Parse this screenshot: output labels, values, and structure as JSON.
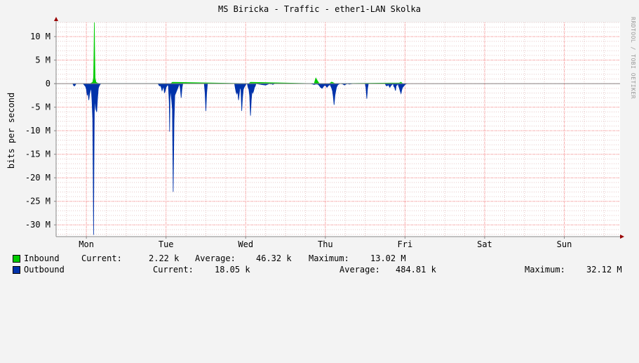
{
  "title": "MS Biricka - Traffic - ether1-LAN Skolka",
  "watermark": "RRDTOOL / TOBI OETIKER",
  "colors": {
    "background": "#f3f3f3",
    "plot": "#ffffff",
    "inbound": "#00cc00",
    "outbound": "#0033aa",
    "grid_major": "#ff9999",
    "grid_minor": "#e6c8c8",
    "axis": "#888888"
  },
  "legend": {
    "inbound": {
      "name": "Inbound",
      "current_label": "Current:",
      "current": "2.22 k",
      "average_label": "Average:",
      "average": "46.32 k",
      "maximum_label": "Maximum:",
      "maximum": "13.02 M"
    },
    "outbound": {
      "name": "Outbound",
      "current_label": "Current:",
      "current": "18.05 k",
      "average_label": "Average:",
      "average": "484.81 k",
      "maximum_label": "Maximum:",
      "maximum": "32.12 M"
    }
  },
  "chart_data": {
    "type": "area",
    "title": "MS Biricka - Traffic - ether1-LAN Skolka",
    "ylabel": "bits per second",
    "xlabel": "",
    "x_unit": "days",
    "ylim": [
      -32.5,
      13
    ],
    "y_unit": "M",
    "y_ticks": [
      10,
      5,
      0,
      -5,
      -10,
      -15,
      -20,
      -25,
      -30
    ],
    "y_tick_labels": [
      "10 M",
      "5 M",
      "0",
      "-5 M",
      "-10 M",
      "-15 M",
      "-20 M",
      "-25 M",
      "-30 M"
    ],
    "xlim": [
      -0.38,
      6.7
    ],
    "x_ticks": [
      0,
      1,
      2,
      3,
      4,
      5,
      6
    ],
    "x_tick_labels": [
      "Mon",
      "Tue",
      "Wed",
      "Thu",
      "Fri",
      "Sat",
      "Sun"
    ],
    "grid": true,
    "legend": "bottom",
    "series": [
      {
        "name": "Inbound",
        "color": "#00cc00",
        "x": [
          0.05,
          0.08,
          0.09,
          0.095,
          0.1,
          0.105,
          0.11,
          0.12,
          0.14,
          0.17,
          1.06,
          1.08,
          2.04,
          2.06,
          2.86,
          2.87,
          2.88,
          2.9,
          2.92,
          2.94,
          3.05,
          3.08,
          3.1,
          3.12,
          3.93,
          3.95,
          3.97
        ],
        "values": [
          0,
          0.3,
          1.2,
          6,
          13.02,
          6,
          1.2,
          0.3,
          0.1,
          0,
          0,
          0.3,
          0,
          0.3,
          0,
          0.6,
          1.2,
          0.6,
          0.1,
          0,
          0,
          0.35,
          0.2,
          0,
          0.15,
          0.3,
          0
        ]
      },
      {
        "name": "Outbound",
        "color": "#0033aa",
        "x": [
          -0.17,
          -0.16,
          -0.15,
          -0.14,
          -0.13,
          -0.04,
          -0.03,
          -0.01,
          0.0,
          0.01,
          0.02,
          0.03,
          0.04,
          0.05,
          0.06,
          0.07,
          0.08,
          0.085,
          0.09,
          0.095,
          0.1,
          0.105,
          0.11,
          0.12,
          0.13,
          0.14,
          0.15,
          0.16,
          0.17,
          0.18,
          0.9,
          0.91,
          0.92,
          0.93,
          0.94,
          0.95,
          0.96,
          0.97,
          0.98,
          0.99,
          1.0,
          1.01,
          1.02,
          1.03,
          1.04,
          1.045,
          1.05,
          1.055,
          1.06,
          1.07,
          1.08,
          1.09,
          1.1,
          1.11,
          1.17,
          1.18,
          1.19,
          1.2,
          1.21,
          1.48,
          1.49,
          1.5,
          1.51,
          1.52,
          1.86,
          1.87,
          1.88,
          1.89,
          1.9,
          1.91,
          1.92,
          1.93,
          1.94,
          1.95,
          1.96,
          1.97,
          1.98,
          1.99,
          2.0,
          2.01,
          2.02,
          2.03,
          2.04,
          2.05,
          2.06,
          2.07,
          2.08,
          2.09,
          2.1,
          2.11,
          2.12,
          2.13,
          2.2,
          2.25,
          2.3,
          2.32,
          2.33,
          2.34,
          2.35,
          2.36,
          2.82,
          2.84,
          2.86,
          2.88,
          2.9,
          2.92,
          2.94,
          2.96,
          2.98,
          3.0,
          3.02,
          3.04,
          3.06,
          3.07,
          3.08,
          3.09,
          3.1,
          3.11,
          3.12,
          3.13,
          3.14,
          3.15,
          3.16,
          3.17,
          3.18,
          3.2,
          3.22,
          3.24,
          3.26,
          3.28,
          3.3,
          3.32,
          3.34,
          3.5,
          3.51,
          3.52,
          3.53,
          3.54,
          3.75,
          3.76,
          3.77,
          3.78,
          3.79,
          3.8,
          3.81,
          3.82,
          3.83,
          3.85,
          3.86,
          3.87,
          3.88,
          3.89,
          3.9,
          3.91,
          3.92,
          3.93,
          3.94,
          3.95,
          3.96,
          3.97,
          3.98,
          3.99,
          4.0,
          4.01,
          4.02,
          4.03
        ],
        "values": [
          0,
          -0.4,
          -0.5,
          -0.3,
          0,
          0,
          -0.2,
          -0.6,
          -1.2,
          -2.5,
          -1.8,
          -3.5,
          -2.2,
          -1.5,
          -0.8,
          -3.5,
          -7.5,
          -19,
          -32.12,
          -18,
          -6,
          -5,
          -3,
          -5.5,
          -6,
          -3,
          -1,
          -0.5,
          -0.2,
          0,
          0,
          -0.3,
          -0.5,
          -0.4,
          -0.8,
          -1.5,
          -1.0,
          -0.5,
          -2.0,
          -1.5,
          -0.8,
          -0.5,
          -0.2,
          -0.5,
          -4,
          -10.2,
          -3,
          -0.5,
          -2.0,
          -3.5,
          -5.5,
          -23,
          -8,
          -2.5,
          0,
          -1.2,
          -3,
          -1.0,
          0,
          0,
          -2.0,
          -5.8,
          -2.0,
          0,
          0,
          -1.0,
          -1.8,
          -2.2,
          -1.5,
          -3.5,
          -2.0,
          -0.8,
          -1.2,
          -5.8,
          -3.0,
          -1.2,
          -0.8,
          -0.5,
          -0.2,
          0,
          0,
          -0.8,
          -1.2,
          -2.5,
          -6.8,
          -3.5,
          -1.5,
          -2.0,
          -1.5,
          -0.8,
          -0.5,
          0,
          -0.2,
          -0.3,
          0,
          -0.1,
          0,
          -0.2,
          -0.1,
          0,
          0,
          -0.1,
          -0.2,
          -0.1,
          -0.1,
          -0.3,
          -0.8,
          -1.0,
          -0.5,
          -0.3,
          -0.8,
          -0.4,
          -0.2,
          -0.6,
          -1.0,
          -1.6,
          -2.8,
          -4.5,
          -2.5,
          -1.6,
          -0.8,
          -0.4,
          -0.2,
          -0.1,
          0,
          0,
          -0.1,
          -0.3,
          -0.1,
          0,
          -0.1,
          -0.05,
          0,
          0,
          -0.8,
          -3.2,
          -1.0,
          0,
          0,
          -0.3,
          -0.5,
          -0.4,
          -0.2,
          -0.5,
          -0.8,
          -0.5,
          -0.3,
          0,
          -0.6,
          -0.8,
          -1.5,
          -0.4,
          -0.3,
          0,
          -0.5,
          -1.0,
          -1.6,
          -2.1,
          -1.3,
          -0.8,
          -0.6,
          -0.4,
          -0.2,
          -0.1,
          0,
          0
        ]
      }
    ]
  }
}
